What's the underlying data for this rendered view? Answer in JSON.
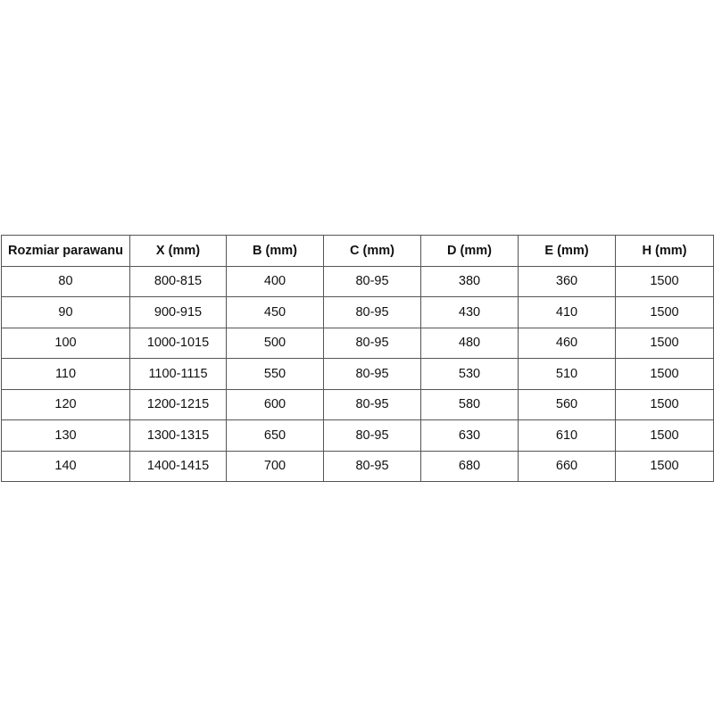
{
  "table": {
    "headers": [
      "Rozmiar parawanu",
      "X (mm)",
      "B (mm)",
      "C (mm)",
      "D (mm)",
      "E (mm)",
      "H (mm)"
    ],
    "rows": [
      [
        "80",
        "800-815",
        "400",
        "80-95",
        "380",
        "360",
        "1500"
      ],
      [
        "90",
        "900-915",
        "450",
        "80-95",
        "430",
        "410",
        "1500"
      ],
      [
        "100",
        "1000-1015",
        "500",
        "80-95",
        "480",
        "460",
        "1500"
      ],
      [
        "110",
        "1100-1115",
        "550",
        "80-95",
        "530",
        "510",
        "1500"
      ],
      [
        "120",
        "1200-1215",
        "600",
        "80-95",
        "580",
        "560",
        "1500"
      ],
      [
        "130",
        "1300-1315",
        "650",
        "80-95",
        "630",
        "610",
        "1500"
      ],
      [
        "140",
        "1400-1415",
        "700",
        "80-95",
        "680",
        "660",
        "1500"
      ]
    ]
  }
}
